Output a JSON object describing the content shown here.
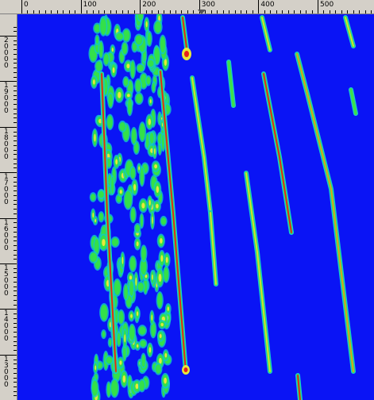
{
  "top_ruler": {
    "ticks": [
      "0",
      "100",
      "200",
      "300",
      "400",
      "500"
    ]
  },
  "left_ruler": {
    "ticks": [
      "20000",
      "19000",
      "18000",
      "17000",
      "16000",
      "15000",
      "14000",
      "13000"
    ]
  }
}
